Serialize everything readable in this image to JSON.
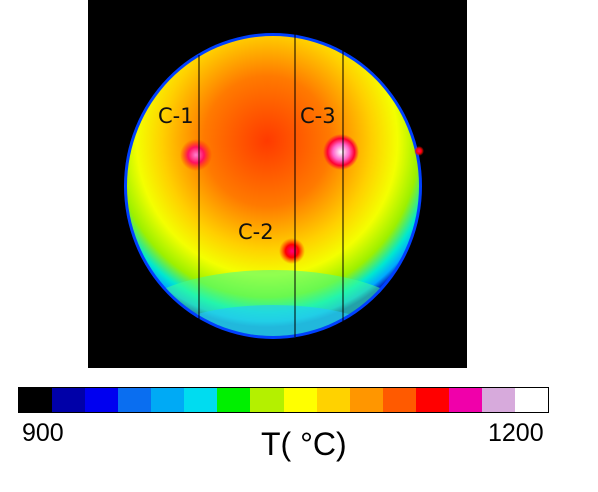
{
  "thermal_image": {
    "markers": [
      {
        "label": "C-1"
      },
      {
        "label": "C-2"
      },
      {
        "label": "C-3"
      }
    ]
  },
  "colorbar": {
    "min_label": "900",
    "max_label": "1200",
    "unit_label": "T( °C)",
    "colors": [
      "#000000",
      "#0000a8",
      "#0000f0",
      "#0a6ef0",
      "#00aaf5",
      "#00dcf0",
      "#00f000",
      "#b4f000",
      "#ffff00",
      "#ffd200",
      "#ff9600",
      "#ff5a00",
      "#ff0000",
      "#f000aa",
      "#d7aadc",
      "#ffffff"
    ]
  }
}
